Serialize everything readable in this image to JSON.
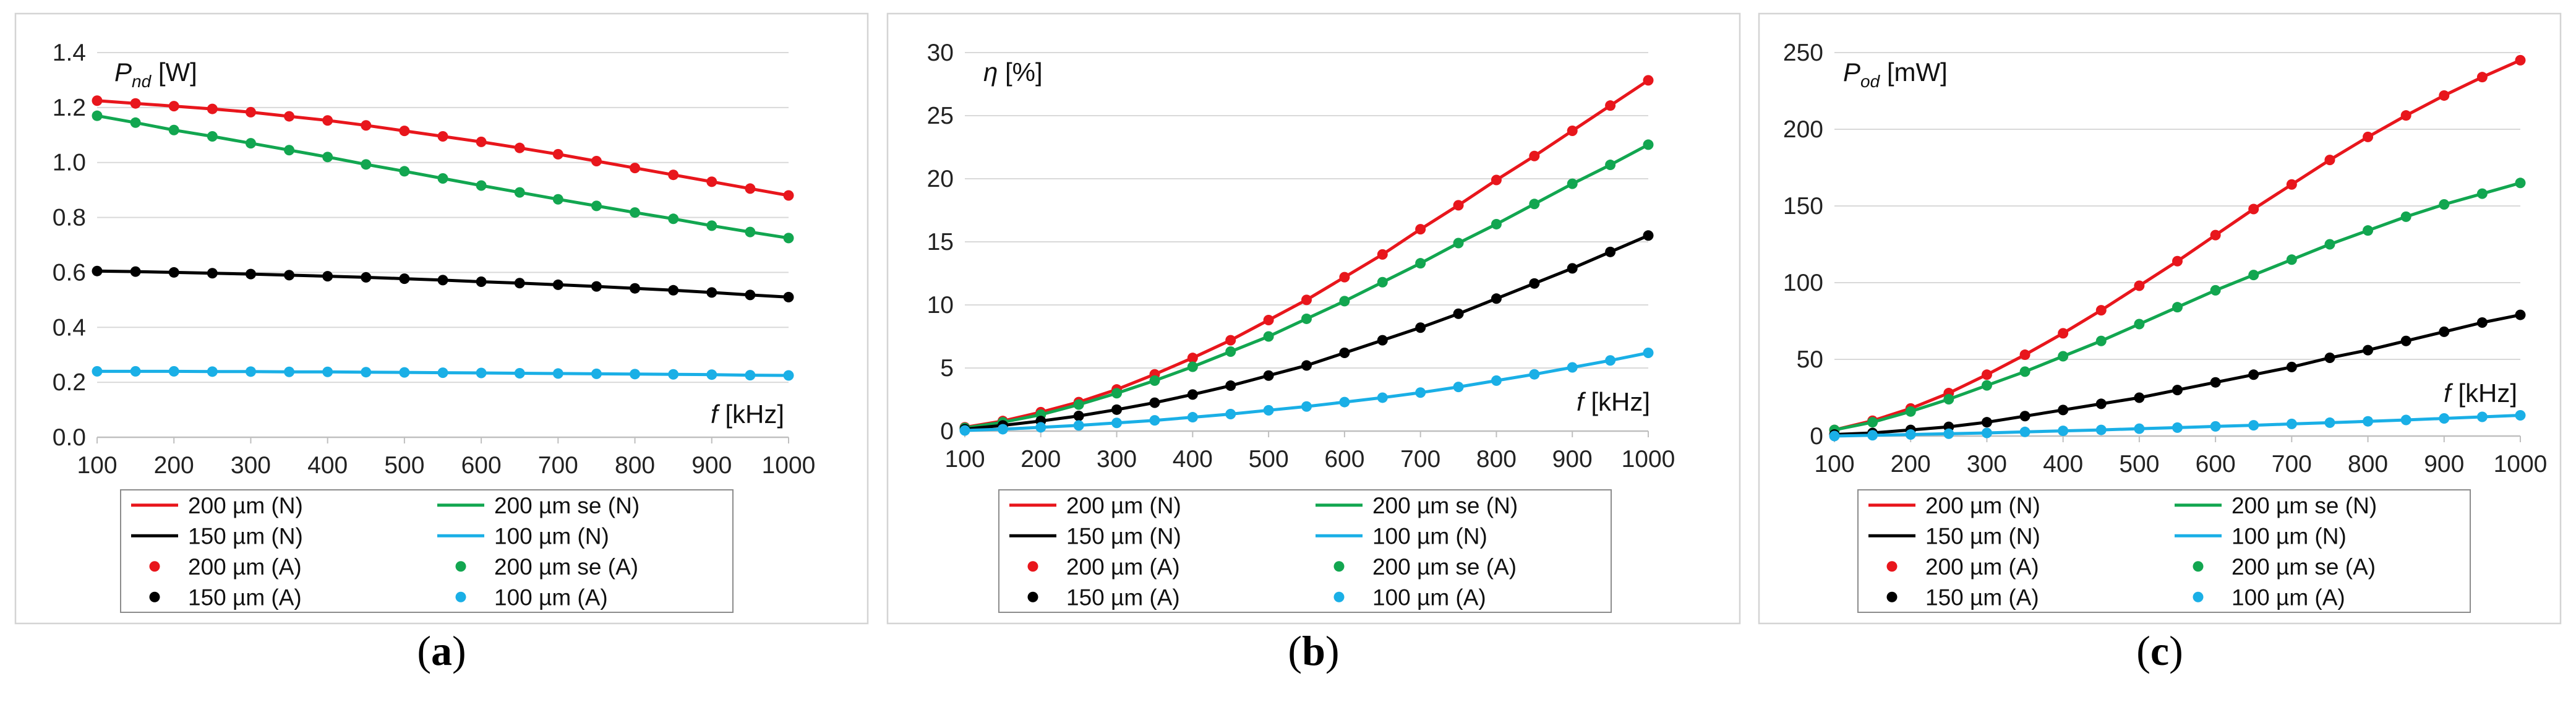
{
  "legend": {
    "line_label": "(N)",
    "dot_label": "(A)"
  },
  "chart_data": [
    {
      "type": "line",
      "panel_label": "a",
      "ylabel_symbol": "P",
      "ylabel_sub": "nd",
      "ylabel_unit": "[W]",
      "xlabel_symbol": "f",
      "xlabel_unit": "[kHz]",
      "xlim": [
        100,
        1000
      ],
      "ylim": [
        0,
        1.4
      ],
      "yticks": [
        "0.0",
        "0.2",
        "0.4",
        "0.6",
        "0.8",
        "1.0",
        "1.2",
        "1.4"
      ],
      "xticks": [
        "100",
        "200",
        "300",
        "400",
        "500",
        "600",
        "700",
        "800",
        "900",
        "1000"
      ],
      "x": [
        100,
        150,
        200,
        250,
        300,
        350,
        400,
        450,
        500,
        550,
        600,
        650,
        700,
        750,
        800,
        850,
        900,
        950,
        1000
      ],
      "series": [
        {
          "name": "200 µm",
          "color": "#e8161c",
          "values": [
            1.225,
            1.215,
            1.205,
            1.195,
            1.183,
            1.168,
            1.153,
            1.135,
            1.115,
            1.095,
            1.075,
            1.053,
            1.03,
            1.005,
            0.98,
            0.955,
            0.93,
            0.905,
            0.88
          ]
        },
        {
          "name": "200 µm se",
          "color": "#12a650",
          "values": [
            1.17,
            1.145,
            1.118,
            1.095,
            1.07,
            1.045,
            1.02,
            0.993,
            0.968,
            0.942,
            0.916,
            0.891,
            0.866,
            0.842,
            0.818,
            0.795,
            0.77,
            0.747,
            0.725
          ]
        },
        {
          "name": "150 µm",
          "color": "#000000",
          "values": [
            0.605,
            0.603,
            0.6,
            0.597,
            0.594,
            0.59,
            0.586,
            0.582,
            0.577,
            0.572,
            0.566,
            0.561,
            0.555,
            0.549,
            0.542,
            0.535,
            0.527,
            0.518,
            0.51
          ]
        },
        {
          "name": "100 µm",
          "color": "#1aafe6",
          "values": [
            0.24,
            0.24,
            0.24,
            0.239,
            0.239,
            0.238,
            0.238,
            0.237,
            0.236,
            0.235,
            0.234,
            0.233,
            0.232,
            0.231,
            0.23,
            0.229,
            0.228,
            0.226,
            0.225
          ]
        }
      ]
    },
    {
      "type": "line",
      "panel_label": "b",
      "ylabel_symbol": "η",
      "ylabel_sub": "",
      "ylabel_unit": "[%]",
      "xlabel_symbol": "f",
      "xlabel_unit": "[kHz]",
      "xlim": [
        100,
        1000
      ],
      "ylim": [
        0,
        30
      ],
      "yticks": [
        "0",
        "5",
        "10",
        "15",
        "20",
        "25",
        "30"
      ],
      "xticks": [
        "100",
        "200",
        "300",
        "400",
        "500",
        "600",
        "700",
        "800",
        "900",
        "1000"
      ],
      "x": [
        100,
        150,
        200,
        250,
        300,
        350,
        400,
        450,
        500,
        550,
        600,
        650,
        700,
        750,
        800,
        850,
        900,
        950,
        1000
      ],
      "series": [
        {
          "name": "200 µm",
          "color": "#e8161c",
          "values": [
            0.3,
            0.8,
            1.5,
            2.3,
            3.3,
            4.5,
            5.8,
            7.2,
            8.8,
            10.4,
            12.2,
            14.0,
            16.0,
            17.9,
            19.9,
            21.8,
            23.8,
            25.8,
            27.8
          ]
        },
        {
          "name": "200 µm se",
          "color": "#12a650",
          "values": [
            0.25,
            0.7,
            1.3,
            2.1,
            3.0,
            4.0,
            5.1,
            6.3,
            7.5,
            8.9,
            10.3,
            11.8,
            13.3,
            14.9,
            16.4,
            18.0,
            19.6,
            21.1,
            22.7
          ]
        },
        {
          "name": "150 µm",
          "color": "#000000",
          "values": [
            0.15,
            0.45,
            0.8,
            1.2,
            1.7,
            2.25,
            2.9,
            3.6,
            4.4,
            5.2,
            6.2,
            7.2,
            8.2,
            9.3,
            10.5,
            11.7,
            12.9,
            14.2,
            15.5
          ]
        },
        {
          "name": "100 µm",
          "color": "#1aafe6",
          "values": [
            0.05,
            0.15,
            0.3,
            0.45,
            0.65,
            0.85,
            1.1,
            1.35,
            1.65,
            1.95,
            2.3,
            2.65,
            3.05,
            3.5,
            4.0,
            4.5,
            5.05,
            5.6,
            6.2
          ]
        }
      ]
    },
    {
      "type": "line",
      "panel_label": "c",
      "ylabel_symbol": "P",
      "ylabel_sub": "od",
      "ylabel_unit": "[mW]",
      "xlabel_symbol": "f",
      "xlabel_unit": "[kHz]",
      "xlim": [
        100,
        1000
      ],
      "ylim": [
        0,
        250
      ],
      "yticks": [
        "0",
        "50",
        "100",
        "150",
        "200",
        "250"
      ],
      "xticks": [
        "100",
        "200",
        "300",
        "400",
        "500",
        "600",
        "700",
        "800",
        "900",
        "1000"
      ],
      "x": [
        100,
        150,
        200,
        250,
        300,
        350,
        400,
        450,
        500,
        550,
        600,
        650,
        700,
        750,
        800,
        850,
        900,
        950,
        1000
      ],
      "series": [
        {
          "name": "200 µm",
          "color": "#e8161c",
          "values": [
            4,
            10,
            18,
            28,
            40,
            53,
            67,
            82,
            98,
            114,
            131,
            148,
            164,
            180,
            195,
            209,
            222,
            234,
            245
          ]
        },
        {
          "name": "200 µm se",
          "color": "#12a650",
          "values": [
            4,
            9,
            16,
            24,
            33,
            42,
            52,
            62,
            73,
            84,
            95,
            105,
            115,
            125,
            134,
            143,
            151,
            158,
            165
          ]
        },
        {
          "name": "150 µm",
          "color": "#000000",
          "values": [
            1,
            2,
            4,
            6,
            9,
            13,
            17,
            21,
            25,
            30,
            35,
            40,
            45,
            51,
            56,
            62,
            68,
            74,
            79
          ]
        },
        {
          "name": "100 µm",
          "color": "#1aafe6",
          "values": [
            0,
            0.5,
            1,
            1.5,
            2,
            2.7,
            3.4,
            4,
            4.8,
            5.5,
            6.3,
            7,
            7.9,
            8.7,
            9.6,
            10.5,
            11.5,
            12.5,
            13.5
          ]
        }
      ]
    }
  ]
}
